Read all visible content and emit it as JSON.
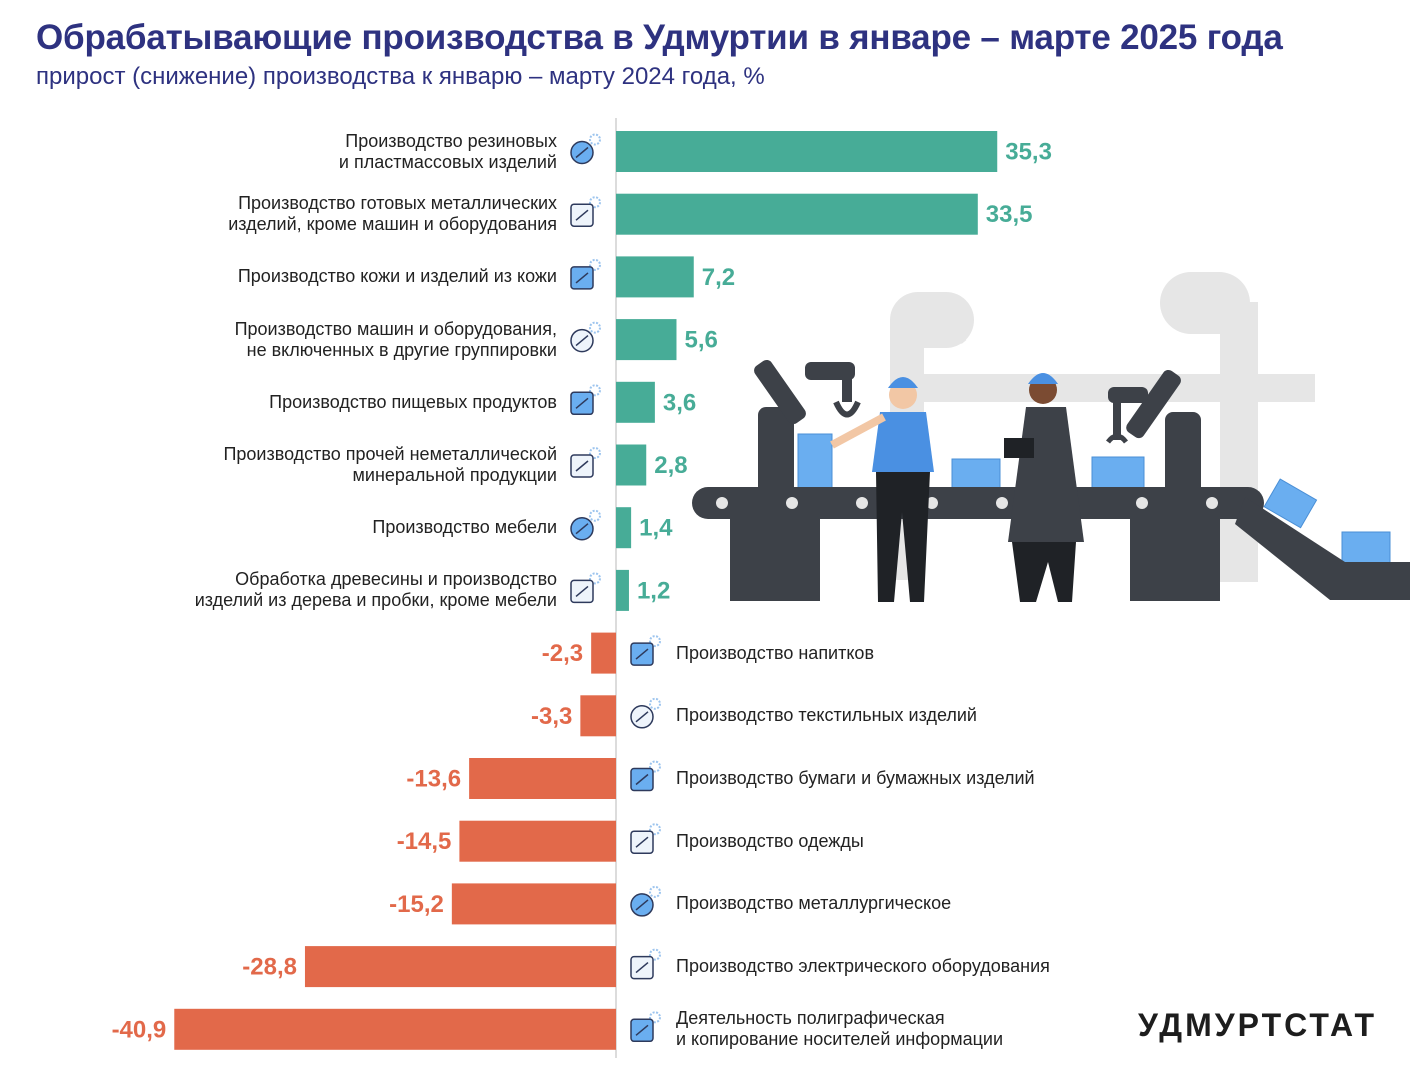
{
  "title": "Обрабатывающие производства в Удмуртии в январе – марте 2025 года",
  "subtitle": "прирост (снижение) производства к январю – марту 2024 года, %",
  "brand": "УДМУРТСТАТ",
  "colors": {
    "positive": "#47ac97",
    "negative": "#e2694a",
    "title": "#2e3280",
    "axis": "#d0d0d0"
  },
  "chart_data": {
    "type": "bar",
    "orientation": "horizontal",
    "categories": [
      [
        "Производство резиновых",
        "и пластмассовых изделий"
      ],
      [
        "Производство готовых металлических",
        "изделий, кроме машин и оборудования"
      ],
      [
        "Производство кожи и изделий из кожи"
      ],
      [
        "Производство машин и оборудования,",
        "не включенных в другие группировки"
      ],
      [
        "Производство пищевых продуктов"
      ],
      [
        "Производство прочей неметаллической",
        "минеральной продукции"
      ],
      [
        "Производство мебели"
      ],
      [
        "Обработка древесины и производство",
        "изделий из дерева и пробки, кроме мебели"
      ],
      [
        "Производство напитков"
      ],
      [
        "Производство текстильных изделий"
      ],
      [
        "Производство бумаги и бумажных изделий"
      ],
      [
        "Производство одежды"
      ],
      [
        "Производство металлургическое"
      ],
      [
        "Производство электрического оборудования"
      ],
      [
        "Деятельность полиграфическая",
        "и копирование носителей информации"
      ]
    ],
    "values": [
      35.3,
      33.5,
      7.2,
      5.6,
      3.6,
      2.8,
      1.4,
      1.2,
      -2.3,
      -3.3,
      -13.6,
      -14.5,
      -15.2,
      -28.8,
      -40.9
    ],
    "value_labels": [
      "35,3",
      "33,5",
      "7,2",
      "5,6",
      "3,6",
      "2,8",
      "1,4",
      "1,2",
      "-2,3",
      "-3,3",
      "-13,6",
      "-14,5",
      "-15,2",
      "-28,8",
      "-40,9"
    ],
    "icons": [
      "boot-icon",
      "gears-icon",
      "leather-icon",
      "robot-arm-icon",
      "ice-cream-icon",
      "mirror-glass-icon",
      "wardrobe-icon",
      "lumber-icon",
      "bottle-icon",
      "fabric-icon",
      "paper-icon",
      "clothes-icon",
      "smelting-bucket-icon",
      "drill-icon",
      "printed-photo-icon"
    ],
    "xlim": [
      -41,
      36
    ],
    "grid": false,
    "legend": "none",
    "xlabel": "",
    "ylabel": ""
  }
}
